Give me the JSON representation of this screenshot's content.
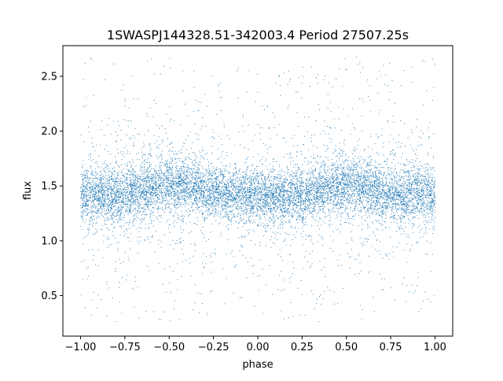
{
  "chart_data": {
    "type": "scatter",
    "title": "1SWASPJ144328.51-342003.4 Period 27507.25s",
    "xlabel": "phase",
    "ylabel": "flux",
    "xlim": [
      -1.1,
      1.1
    ],
    "ylim": [
      0.13,
      2.78
    ],
    "xticks": [
      -1.0,
      -0.75,
      -0.5,
      -0.25,
      0.0,
      0.25,
      0.5,
      0.75,
      1.0
    ],
    "xtick_labels": [
      "−1.00",
      "−0.75",
      "−0.50",
      "−0.25",
      "0.00",
      "0.25",
      "0.50",
      "0.75",
      "1.00"
    ],
    "yticks": [
      0.5,
      1.0,
      1.5,
      2.0,
      2.5
    ],
    "ytick_labels": [
      "0.5",
      "1.0",
      "1.5",
      "2.0",
      "2.5"
    ],
    "grid": false,
    "legend": "none",
    "point_color": "#1f77b4",
    "phase_range": [
      -1.0,
      1.0
    ],
    "flux_range": [
      0.25,
      2.68
    ],
    "flux_profile": {
      "phase": [
        -1.0,
        -0.75,
        -0.5,
        -0.25,
        0.0,
        0.25,
        0.5,
        0.75,
        1.0
      ],
      "median_flux": [
        1.42,
        1.42,
        1.52,
        1.45,
        1.4,
        1.42,
        1.52,
        1.43,
        1.42
      ],
      "core_spread": [
        0.13,
        0.13,
        0.13,
        0.12,
        0.12,
        0.12,
        0.13,
        0.13,
        0.13
      ]
    }
  }
}
